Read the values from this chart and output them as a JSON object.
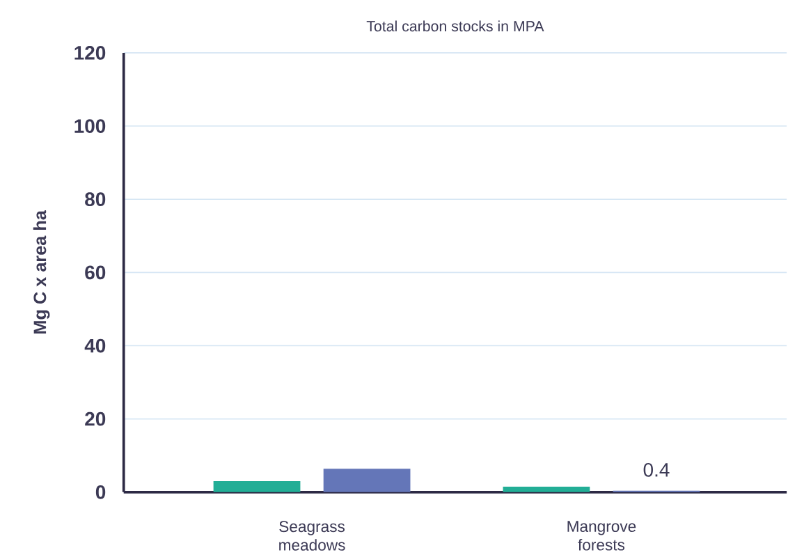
{
  "chart_data": {
    "type": "bar",
    "title": "Total carbon stocks in MPA",
    "ylabel": "Mg C x area ha",
    "categories": [
      "Seagrass meadows",
      "Mangrove forests"
    ],
    "series": [
      {
        "color": "#22ae96",
        "values": [
          3.0,
          1.5
        ]
      },
      {
        "color": "#6476b8",
        "values": [
          6.4,
          0.4
        ],
        "value_labels": [
          null,
          "0.4"
        ]
      }
    ],
    "ylim": [
      0,
      120
    ],
    "yticks": [
      0,
      20,
      40,
      60,
      80,
      100,
      120
    ],
    "grid": "y"
  }
}
